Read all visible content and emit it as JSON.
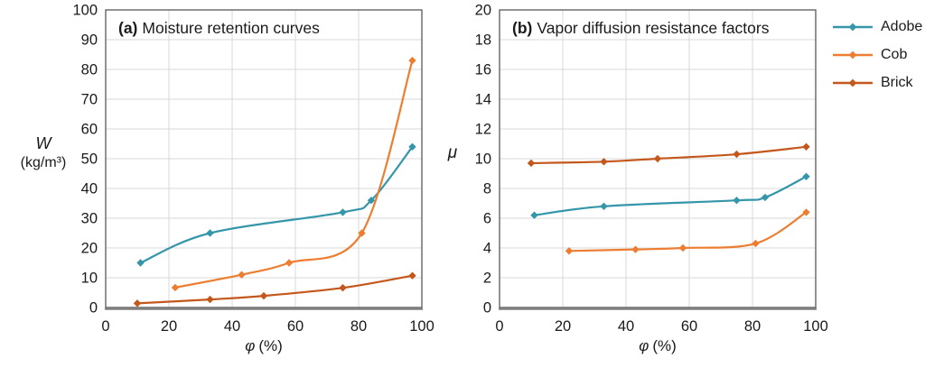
{
  "colors": {
    "Adobe": "#3596AA",
    "Cob": "#ED7D31",
    "Brick": "#C4571C",
    "grid": "#D9D9D9",
    "plot_border": "#595959",
    "axis_line": "#808080",
    "text": "#1A1A1A",
    "background": "#FFFFFF"
  },
  "legend": {
    "items": [
      {
        "label": "Adobe",
        "series": "Adobe"
      },
      {
        "label": "Cob",
        "series": "Cob"
      },
      {
        "label": "Brick",
        "series": "Brick"
      }
    ]
  },
  "chart_data": [
    {
      "type": "line",
      "panel_label": "(a)",
      "title": "Moisture retention curves",
      "xlabel": {
        "symbol": "φ",
        "unit": "(%)"
      },
      "ylabel": {
        "symbol": "W",
        "unit": "(kg/m³)"
      },
      "xlim": [
        0,
        100
      ],
      "ylim": [
        0,
        100
      ],
      "xticks": [
        0,
        20,
        40,
        60,
        80,
        100
      ],
      "yticks": [
        0,
        10,
        20,
        30,
        40,
        50,
        60,
        70,
        80,
        90,
        100
      ],
      "grid": true,
      "legend_position": "outside-right",
      "marker": "diamond",
      "smooth": true,
      "series": [
        {
          "name": "Adobe",
          "x": [
            11,
            33,
            75,
            84,
            97
          ],
          "y": [
            15,
            25,
            32,
            36,
            54
          ]
        },
        {
          "name": "Cob",
          "x": [
            22,
            43,
            58,
            81,
            97
          ],
          "y": [
            6.7,
            11,
            15,
            25,
            83
          ]
        },
        {
          "name": "Brick",
          "x": [
            10,
            33,
            50,
            75,
            97
          ],
          "y": [
            1.4,
            2.7,
            3.9,
            6.6,
            10.7
          ]
        }
      ]
    },
    {
      "type": "line",
      "panel_label": "(b)",
      "title": "Vapor diffusion resistance factors",
      "xlabel": {
        "symbol": "φ",
        "unit": "(%)"
      },
      "ylabel": {
        "symbol": "μ",
        "unit": ""
      },
      "xlim": [
        0,
        100
      ],
      "ylim": [
        0,
        20
      ],
      "xticks": [
        0,
        20,
        40,
        60,
        80,
        100
      ],
      "yticks": [
        0,
        2,
        4,
        6,
        8,
        10,
        12,
        14,
        16,
        18,
        20
      ],
      "grid": true,
      "legend_position": "outside-right",
      "marker": "diamond",
      "smooth": true,
      "series": [
        {
          "name": "Adobe",
          "x": [
            11,
            33,
            75,
            84,
            97
          ],
          "y": [
            6.2,
            6.8,
            7.2,
            7.4,
            8.8
          ]
        },
        {
          "name": "Cob",
          "x": [
            22,
            43,
            58,
            81,
            97
          ],
          "y": [
            3.8,
            3.9,
            4.0,
            4.3,
            6.4
          ]
        },
        {
          "name": "Brick",
          "x": [
            10,
            33,
            50,
            75,
            97
          ],
          "y": [
            9.7,
            9.8,
            10.0,
            10.3,
            10.8
          ]
        }
      ]
    }
  ]
}
